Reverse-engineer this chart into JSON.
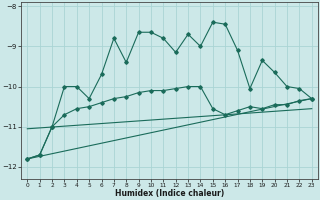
{
  "xlabel": "Humidex (Indice chaleur)",
  "background_color": "#cce8e8",
  "grid_color": "#aad4d4",
  "line_color": "#1a6b5a",
  "xlim": [
    -0.5,
    23.5
  ],
  "ylim": [
    -12.3,
    -7.9
  ],
  "yticks": [
    -12,
    -11,
    -10,
    -9,
    -8
  ],
  "xticks": [
    0,
    1,
    2,
    3,
    4,
    5,
    6,
    7,
    8,
    9,
    10,
    11,
    12,
    13,
    14,
    15,
    16,
    17,
    18,
    19,
    20,
    21,
    22,
    23
  ],
  "line1_x": [
    0,
    1,
    2,
    3,
    4,
    5,
    6,
    7,
    8,
    9,
    10,
    11,
    12,
    13,
    14,
    15,
    16,
    17,
    18,
    19,
    20,
    21,
    22,
    23
  ],
  "line1_y": [
    -11.8,
    -11.7,
    -11.0,
    -10.0,
    -10.0,
    -10.3,
    -9.7,
    -8.8,
    -9.4,
    -8.65,
    -8.65,
    -8.8,
    -9.15,
    -8.7,
    -9.0,
    -8.4,
    -8.45,
    -9.1,
    -10.05,
    -9.35,
    -9.65,
    -10.0,
    -10.05,
    -10.3
  ],
  "line2_x": [
    0,
    1,
    2,
    3,
    4,
    5,
    6,
    7,
    8,
    9,
    10,
    11,
    12,
    13,
    14,
    15,
    16,
    17,
    18,
    19,
    20,
    21,
    22,
    23
  ],
  "line2_y": [
    -11.8,
    -11.7,
    -11.0,
    -10.7,
    -10.55,
    -10.5,
    -10.4,
    -10.3,
    -10.25,
    -10.15,
    -10.1,
    -10.1,
    -10.05,
    -10.0,
    -10.0,
    -10.55,
    -10.7,
    -10.6,
    -10.5,
    -10.55,
    -10.45,
    -10.45,
    -10.35,
    -10.3
  ],
  "line3_x": [
    0,
    23
  ],
  "line3_y": [
    -11.8,
    -10.3
  ],
  "line4_x": [
    0,
    23
  ],
  "line4_y": [
    -11.05,
    -10.55
  ]
}
